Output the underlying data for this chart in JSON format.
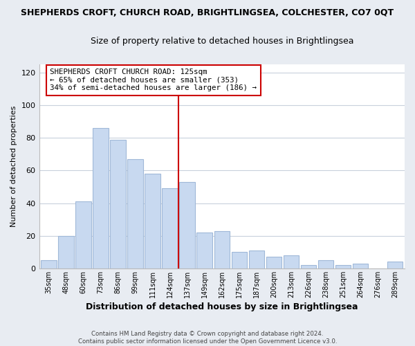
{
  "title": "SHEPHERDS CROFT, CHURCH ROAD, BRIGHTLINGSEA, COLCHESTER, CO7 0QT",
  "subtitle": "Size of property relative to detached houses in Brightlingsea",
  "xlabel": "Distribution of detached houses by size in Brightlingsea",
  "ylabel": "Number of detached properties",
  "footer_line1": "Contains HM Land Registry data © Crown copyright and database right 2024.",
  "footer_line2": "Contains public sector information licensed under the Open Government Licence v3.0.",
  "bar_labels": [
    "35sqm",
    "48sqm",
    "60sqm",
    "73sqm",
    "86sqm",
    "99sqm",
    "111sqm",
    "124sqm",
    "137sqm",
    "149sqm",
    "162sqm",
    "175sqm",
    "187sqm",
    "200sqm",
    "213sqm",
    "226sqm",
    "238sqm",
    "251sqm",
    "264sqm",
    "276sqm",
    "289sqm"
  ],
  "bar_values": [
    5,
    20,
    41,
    86,
    79,
    67,
    58,
    49,
    53,
    22,
    23,
    10,
    11,
    7,
    8,
    2,
    5,
    2,
    3,
    0,
    4
  ],
  "bar_color": "#c8d9f0",
  "bar_edge_color": "#a0b8d8",
  "vline_x_index": 7.5,
  "vline_color": "#cc0000",
  "ylim": [
    0,
    125
  ],
  "yticks": [
    0,
    20,
    40,
    60,
    80,
    100,
    120
  ],
  "annotation_title": "SHEPHERDS CROFT CHURCH ROAD: 125sqm",
  "annotation_line1": "← 65% of detached houses are smaller (353)",
  "annotation_line2": "34% of semi-detached houses are larger (186) →",
  "annotation_box_color": "#ffffff",
  "annotation_box_edge": "#cc0000",
  "grid_color": "#c8d0dc",
  "background_color": "#ffffff",
  "fig_background_color": "#e8ecf2"
}
